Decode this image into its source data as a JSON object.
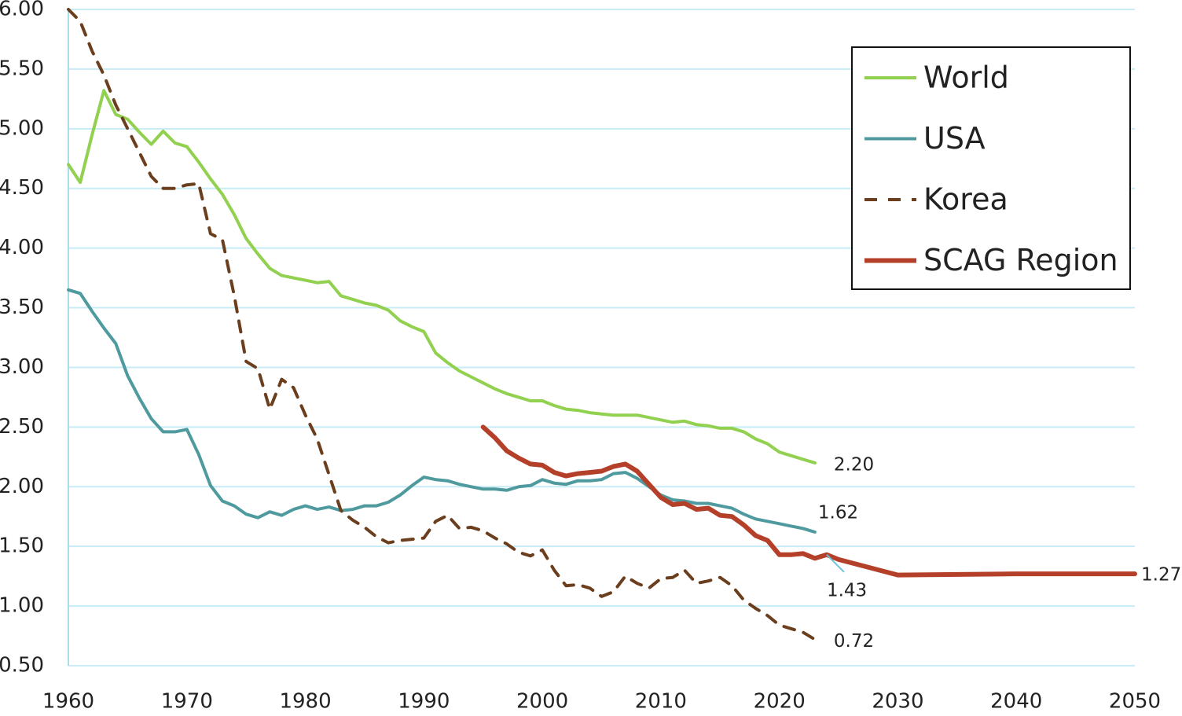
{
  "chart_data": {
    "type": "line",
    "xlim": [
      1960,
      2050
    ],
    "xticks": [
      1960,
      1970,
      1980,
      1990,
      2000,
      2010,
      2020,
      2030,
      2040,
      2050
    ],
    "ylim": [
      0.5,
      6
    ],
    "yticks": [
      {
        "value": 0.5,
        "label": "0.50"
      },
      {
        "value": 1,
        "label": "1.00"
      },
      {
        "value": 1.5,
        "label": "1.50"
      },
      {
        "value": 2,
        "label": "2.00"
      },
      {
        "value": 2.5,
        "label": "2.50"
      },
      {
        "value": 3,
        "label": "3.00"
      },
      {
        "value": 3.5,
        "label": "3.50"
      },
      {
        "value": 4,
        "label": "4.00"
      },
      {
        "value": 4.5,
        "label": "4.50"
      },
      {
        "value": 5,
        "label": "5.00"
      },
      {
        "value": 5.5,
        "label": "5.50"
      },
      {
        "value": 6,
        "label": "6.00"
      }
    ],
    "grid": true,
    "legend": "upper right",
    "series": [
      {
        "name": "World",
        "color": "#92d050",
        "width": 4,
        "dash": false,
        "x": [
          1960,
          1961,
          1962,
          1963,
          1964,
          1965,
          1966,
          1967,
          1968,
          1969,
          1970,
          1971,
          1972,
          1973,
          1974,
          1975,
          1976,
          1977,
          1978,
          1979,
          1980,
          1981,
          1982,
          1983,
          1984,
          1985,
          1986,
          1987,
          1988,
          1989,
          1990,
          1991,
          1992,
          1993,
          1994,
          1995,
          1996,
          1997,
          1998,
          1999,
          2000,
          2001,
          2002,
          2003,
          2004,
          2005,
          2006,
          2007,
          2008,
          2009,
          2010,
          2011,
          2012,
          2013,
          2014,
          2015,
          2016,
          2017,
          2018,
          2019,
          2020,
          2021,
          2022,
          2023
        ],
        "values": [
          4.7,
          4.55,
          4.95,
          5.32,
          5.12,
          5.08,
          4.97,
          4.87,
          4.98,
          4.88,
          4.85,
          4.72,
          4.58,
          4.45,
          4.28,
          4.08,
          3.95,
          3.83,
          3.77,
          3.75,
          3.73,
          3.71,
          3.72,
          3.6,
          3.57,
          3.54,
          3.52,
          3.48,
          3.39,
          3.34,
          3.3,
          3.12,
          3.04,
          2.97,
          2.92,
          2.87,
          2.82,
          2.78,
          2.75,
          2.72,
          2.72,
          2.68,
          2.65,
          2.64,
          2.62,
          2.61,
          2.6,
          2.6,
          2.6,
          2.58,
          2.56,
          2.54,
          2.55,
          2.52,
          2.51,
          2.49,
          2.49,
          2.46,
          2.4,
          2.36,
          2.29,
          2.26,
          2.23,
          2.2
        ],
        "value_labels": [
          null,
          null,
          null,
          null,
          null,
          null,
          null,
          null,
          null,
          null,
          null,
          null,
          null,
          null,
          null,
          null,
          null,
          null,
          null,
          null,
          null,
          null,
          null,
          null,
          null,
          null,
          null,
          null,
          null,
          null,
          null,
          null,
          null,
          null,
          null,
          null,
          null,
          null,
          null,
          null,
          null,
          null,
          null,
          null,
          null,
          null,
          null,
          null,
          null,
          null,
          null,
          null,
          null,
          null,
          null,
          null,
          null,
          null,
          null,
          null,
          null,
          null,
          null,
          "2.20"
        ]
      },
      {
        "name": "USA",
        "color": "#4f9a9e",
        "width": 4,
        "dash": false,
        "x": [
          1960,
          1961,
          1962,
          1963,
          1964,
          1965,
          1966,
          1967,
          1968,
          1969,
          1970,
          1971,
          1972,
          1973,
          1974,
          1975,
          1976,
          1977,
          1978,
          1979,
          1980,
          1981,
          1982,
          1983,
          1984,
          1985,
          1986,
          1987,
          1988,
          1989,
          1990,
          1991,
          1992,
          1993,
          1994,
          1995,
          1996,
          1997,
          1998,
          1999,
          2000,
          2001,
          2002,
          2003,
          2004,
          2005,
          2006,
          2007,
          2008,
          2009,
          2010,
          2011,
          2012,
          2013,
          2014,
          2015,
          2016,
          2017,
          2018,
          2019,
          2020,
          2021,
          2022,
          2023
        ],
        "values": [
          3.65,
          3.62,
          3.47,
          3.33,
          3.2,
          2.93,
          2.74,
          2.57,
          2.46,
          2.46,
          2.48,
          2.27,
          2.01,
          1.88,
          1.84,
          1.77,
          1.74,
          1.79,
          1.76,
          1.81,
          1.84,
          1.81,
          1.83,
          1.8,
          1.81,
          1.84,
          1.84,
          1.87,
          1.93,
          2.01,
          2.08,
          2.06,
          2.05,
          2.02,
          2.0,
          1.98,
          1.98,
          1.97,
          2.0,
          2.01,
          2.06,
          2.03,
          2.02,
          2.05,
          2.05,
          2.06,
          2.11,
          2.12,
          2.07,
          2.0,
          1.93,
          1.89,
          1.88,
          1.86,
          1.86,
          1.84,
          1.82,
          1.77,
          1.73,
          1.71,
          1.69,
          1.67,
          1.65,
          1.62
        ],
        "value_labels": [
          null,
          null,
          null,
          null,
          null,
          null,
          null,
          null,
          null,
          null,
          null,
          null,
          null,
          null,
          null,
          null,
          null,
          null,
          null,
          null,
          null,
          null,
          null,
          null,
          null,
          null,
          null,
          null,
          null,
          null,
          null,
          null,
          null,
          null,
          null,
          null,
          null,
          null,
          null,
          null,
          null,
          null,
          null,
          null,
          null,
          null,
          null,
          null,
          null,
          null,
          null,
          null,
          null,
          null,
          null,
          null,
          null,
          null,
          null,
          null,
          null,
          null,
          null,
          "1.62"
        ]
      },
      {
        "name": "Korea",
        "color": "#6b3e1e",
        "width": 4,
        "dash": true,
        "x": [
          1960,
          1961,
          1962,
          1963,
          1964,
          1965,
          1966,
          1967,
          1968,
          1969,
          1970,
          1971,
          1972,
          1973,
          1974,
          1975,
          1976,
          1977,
          1978,
          1979,
          1980,
          1981,
          1982,
          1983,
          1984,
          1985,
          1986,
          1987,
          1988,
          1989,
          1990,
          1991,
          1992,
          1993,
          1994,
          1995,
          1996,
          1997,
          1998,
          1999,
          2000,
          2001,
          2002,
          2003,
          2004,
          2005,
          2006,
          2007,
          2008,
          2009,
          2010,
          2011,
          2012,
          2013,
          2014,
          2015,
          2016,
          2017,
          2018,
          2019,
          2020,
          2021,
          2022,
          2023
        ],
        "values": [
          6.0,
          5.9,
          5.65,
          5.45,
          5.2,
          5.0,
          4.8,
          4.6,
          4.5,
          4.5,
          4.53,
          4.54,
          4.12,
          4.07,
          3.6,
          3.05,
          2.99,
          2.65,
          2.9,
          2.83,
          2.6,
          2.4,
          2.1,
          1.8,
          1.72,
          1.66,
          1.58,
          1.53,
          1.55,
          1.56,
          1.57,
          1.71,
          1.76,
          1.65,
          1.66,
          1.63,
          1.57,
          1.52,
          1.45,
          1.42,
          1.47,
          1.3,
          1.17,
          1.18,
          1.15,
          1.08,
          1.12,
          1.25,
          1.19,
          1.15,
          1.23,
          1.24,
          1.3,
          1.19,
          1.21,
          1.24,
          1.17,
          1.05,
          0.98,
          0.92,
          0.84,
          0.81,
          0.78,
          0.72
        ],
        "value_labels": [
          null,
          null,
          null,
          null,
          null,
          null,
          null,
          null,
          null,
          null,
          null,
          null,
          null,
          null,
          null,
          null,
          null,
          null,
          null,
          null,
          null,
          null,
          null,
          null,
          null,
          null,
          null,
          null,
          null,
          null,
          null,
          null,
          null,
          null,
          null,
          null,
          null,
          null,
          null,
          null,
          null,
          null,
          null,
          null,
          null,
          null,
          null,
          null,
          null,
          null,
          null,
          null,
          null,
          null,
          null,
          null,
          null,
          null,
          null,
          null,
          null,
          null,
          null,
          "0.72"
        ]
      },
      {
        "name": "SCAG Region",
        "color": "#b5402a",
        "width": 6,
        "dash": false,
        "x": [
          1995,
          1996,
          1997,
          1998,
          1999,
          2000,
          2001,
          2002,
          2003,
          2004,
          2005,
          2006,
          2007,
          2008,
          2009,
          2010,
          2011,
          2012,
          2013,
          2014,
          2015,
          2016,
          2017,
          2018,
          2019,
          2020,
          2021,
          2022,
          2023,
          2024,
          2025,
          2030,
          2040,
          2050
        ],
        "values": [
          2.5,
          2.41,
          2.3,
          2.24,
          2.19,
          2.18,
          2.12,
          2.09,
          2.11,
          2.12,
          2.13,
          2.17,
          2.19,
          2.13,
          2.02,
          1.91,
          1.85,
          1.86,
          1.81,
          1.82,
          1.76,
          1.75,
          1.68,
          1.59,
          1.55,
          1.43,
          1.43,
          1.44,
          1.4,
          1.43,
          1.39,
          1.26,
          1.27,
          1.27
        ],
        "value_labels": [
          null,
          null,
          null,
          null,
          null,
          null,
          null,
          null,
          null,
          null,
          null,
          null,
          null,
          null,
          null,
          null,
          null,
          null,
          null,
          null,
          null,
          null,
          null,
          null,
          null,
          null,
          null,
          null,
          null,
          "1.43",
          null,
          null,
          null,
          "1.27"
        ]
      }
    ]
  }
}
